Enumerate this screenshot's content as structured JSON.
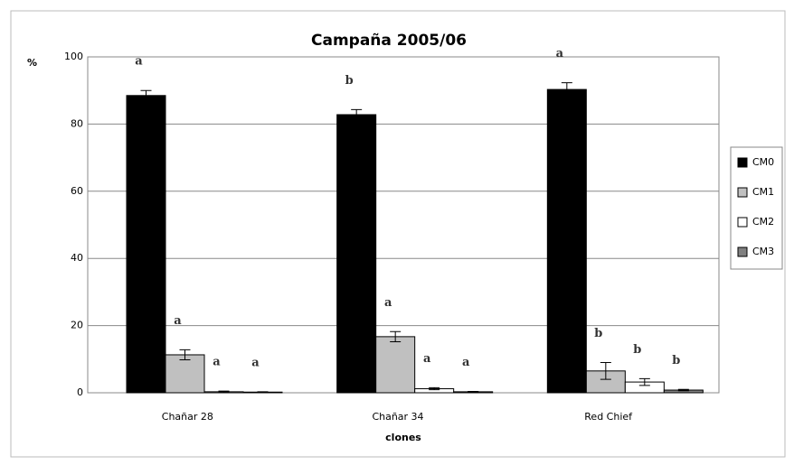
{
  "chart_data": {
    "type": "bar",
    "title": "Campaña 2005/06",
    "ylabel": "%",
    "xlabel": "clones",
    "categories": [
      "Chañar 28",
      "Chañar 34",
      "Red Chief"
    ],
    "series": [
      {
        "name": "CM0",
        "color": "#000000",
        "values": [
          88.5,
          82.8,
          90.3
        ],
        "errors": [
          1.5,
          1.5,
          2
        ],
        "letters": [
          "a",
          "b",
          "a"
        ]
      },
      {
        "name": "CM1",
        "color": "#c0c0c0",
        "values": [
          11.3,
          16.7,
          6.5
        ],
        "errors": [
          1.5,
          1.5,
          2.5
        ],
        "letters": [
          "a",
          "a",
          "b"
        ]
      },
      {
        "name": "CM2",
        "color": "#ffffff",
        "values": [
          0.3,
          1.2,
          3.2
        ],
        "errors": [
          0.2,
          0.3,
          1
        ],
        "letters": [
          "a",
          "a",
          "b"
        ]
      },
      {
        "name": "CM3",
        "color": "#808080",
        "values": [
          0.2,
          0.3,
          0.8
        ],
        "errors": [
          0.1,
          0.1,
          0.2
        ],
        "letters": [
          "a",
          "a",
          "b"
        ]
      }
    ],
    "ylim": [
      0,
      100
    ],
    "yticks": [
      0,
      20,
      40,
      60,
      80,
      100
    ],
    "grid": true,
    "legend": "right"
  }
}
